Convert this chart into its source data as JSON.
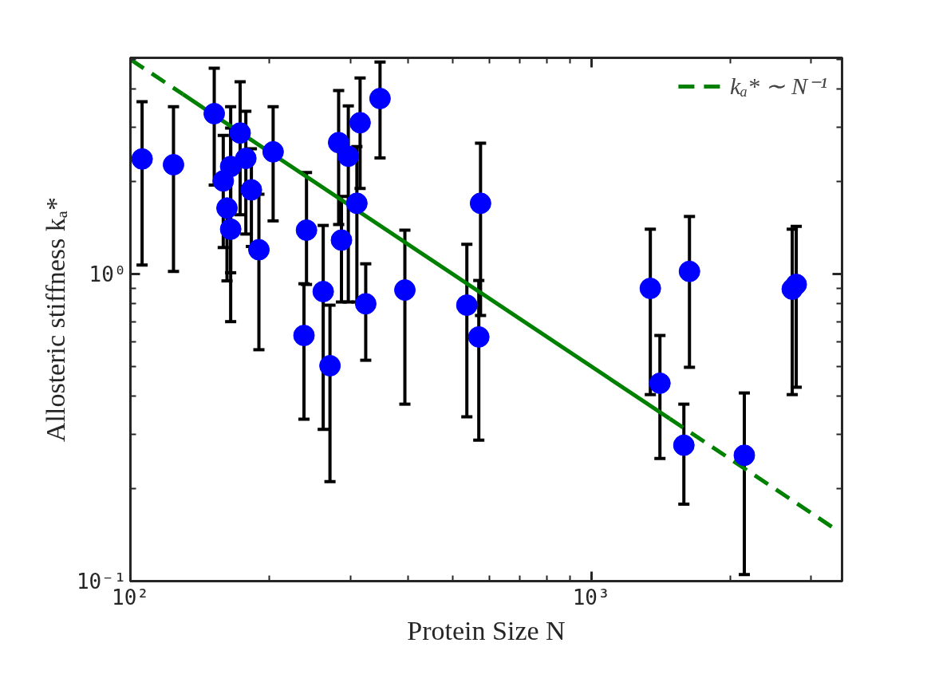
{
  "chart_data": {
    "type": "scatter",
    "xlabel": "Protein Size N",
    "ylabel": "Allosteric stiffness kₐ*",
    "log": "xy",
    "grid": false,
    "legend": "top right",
    "xlim": [
      100,
      3500
    ],
    "ylim": [
      0.1,
      5.06
    ],
    "xticks": [
      {
        "value": 100,
        "label": "10²"
      },
      {
        "value": 200,
        "label": null
      },
      {
        "value": 300,
        "label": null
      },
      {
        "value": 400,
        "label": null
      },
      {
        "value": 500,
        "label": null
      },
      {
        "value": 600,
        "label": null
      },
      {
        "value": 700,
        "label": null
      },
      {
        "value": 800,
        "label": null
      },
      {
        "value": 900,
        "label": null
      },
      {
        "value": 1000,
        "label": "10³"
      },
      {
        "value": 2000,
        "label": null
      },
      {
        "value": 3000,
        "label": null
      }
    ],
    "yticks": [
      {
        "value": 0.1,
        "label": "10⁻¹"
      },
      {
        "value": 0.2,
        "label": null
      },
      {
        "value": 0.3,
        "label": null
      },
      {
        "value": 0.4,
        "label": null
      },
      {
        "value": 0.5,
        "label": null
      },
      {
        "value": 0.6,
        "label": null
      },
      {
        "value": 0.7,
        "label": null
      },
      {
        "value": 0.8,
        "label": null
      },
      {
        "value": 0.9,
        "label": null
      },
      {
        "value": 1,
        "label": "10⁰"
      },
      {
        "value": 2,
        "label": null
      },
      {
        "value": 3,
        "label": null
      },
      {
        "value": 4,
        "label": null
      },
      {
        "value": 5,
        "label": null
      }
    ],
    "series": [
      {
        "type": "line",
        "name": "kₐ* ∼ N⁻¹",
        "color": "#008000",
        "line_style": "dashed",
        "x": [
          100,
          130
        ],
        "values": [
          5.0,
          3.85
        ]
      },
      {
        "type": "line",
        "color": "#008000",
        "line_style": "solid",
        "x": [
          130,
          1480
        ],
        "values": [
          3.85,
          0.338
        ]
      },
      {
        "type": "line",
        "color": "#008000",
        "line_style": "dashed",
        "x": [
          1480,
          3400
        ],
        "values": [
          0.338,
          0.147
        ]
      },
      {
        "color": "#0000ff",
        "marker": "circle",
        "x": [
          106,
          124,
          152,
          173,
          165,
          159,
          178,
          162,
          165,
          183,
          204,
          190,
          241,
          238,
          262,
          271,
          283,
          297,
          287,
          315,
          348,
          310,
          324,
          394,
          537,
          570,
          575,
          1343,
          1633,
          1409,
          1588,
          2148,
          2729,
          2784
        ],
        "values": [
          2.37,
          2.27,
          3.33,
          2.88,
          2.24,
          2.01,
          2.38,
          1.64,
          1.4,
          1.88,
          2.5,
          1.2,
          1.39,
          0.631,
          0.877,
          0.503,
          2.68,
          2.42,
          1.29,
          3.11,
          3.73,
          1.7,
          0.8,
          0.887,
          0.792,
          0.624,
          1.7,
          0.898,
          1.02,
          0.441,
          0.277,
          0.257,
          0.893,
          0.925
        ],
        "errors": [
          [
            1.07,
            3.64
          ],
          [
            1.02,
            3.51
          ],
          [
            1.95,
            4.68
          ],
          [
            1.56,
            4.23
          ],
          [
            1.01,
            3.51
          ],
          [
            1.22,
            2.83
          ],
          [
            1.35,
            3.39
          ],
          [
            0.95,
            1.64
          ],
          [
            0.7,
            2.99
          ],
          [
            1.23,
            2.56
          ],
          [
            1.49,
            3.51
          ],
          [
            0.567,
            1.82
          ],
          [
            0.925,
            2.14
          ],
          [
            0.337,
            0.93
          ],
          [
            0.312,
            1.44
          ],
          [
            0.211,
            0.792
          ],
          [
            1.45,
            3.96
          ],
          [
            0.811,
            3.53
          ],
          [
            0.811,
            1.79
          ],
          [
            1.9,
            4.35
          ],
          [
            2.39,
            4.9
          ],
          [
            0.811,
            2.6
          ],
          [
            0.524,
            1.08
          ],
          [
            0.377,
            1.39
          ],
          [
            0.343,
            1.25
          ],
          [
            0.288,
            0.953
          ],
          [
            0.733,
            2.67
          ],
          [
            0.405,
            1.4
          ],
          [
            0.497,
            1.54
          ],
          [
            0.251,
            0.631
          ],
          [
            0.178,
            0.377
          ],
          [
            0.105,
            0.41
          ],
          [
            0.405,
            1.4
          ],
          [
            0.428,
            1.43
          ]
        ]
      }
    ]
  }
}
